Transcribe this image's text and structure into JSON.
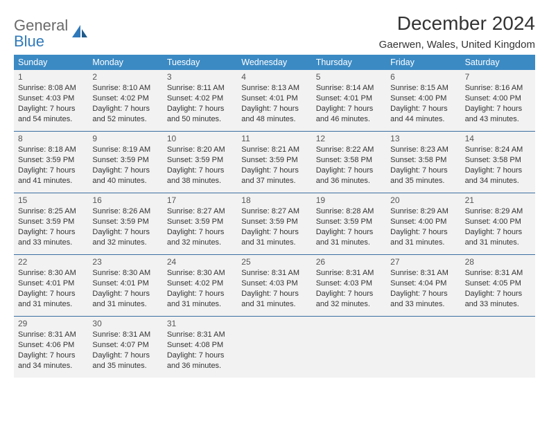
{
  "logo": {
    "text1": "General",
    "text2": "Blue"
  },
  "title": "December 2024",
  "location": "Gaerwen, Wales, United Kingdom",
  "colors": {
    "header_bg": "#3b8ac4",
    "week_border": "#3b6ea0",
    "cell_bg": "#f2f2f2",
    "logo_gray": "#6a6a6a",
    "logo_blue": "#2f79b9"
  },
  "weekdays": [
    "Sunday",
    "Monday",
    "Tuesday",
    "Wednesday",
    "Thursday",
    "Friday",
    "Saturday"
  ],
  "weeks": [
    [
      {
        "n": "1",
        "sr": "Sunrise: 8:08 AM",
        "ss": "Sunset: 4:03 PM",
        "dl1": "Daylight: 7 hours",
        "dl2": "and 54 minutes."
      },
      {
        "n": "2",
        "sr": "Sunrise: 8:10 AM",
        "ss": "Sunset: 4:02 PM",
        "dl1": "Daylight: 7 hours",
        "dl2": "and 52 minutes."
      },
      {
        "n": "3",
        "sr": "Sunrise: 8:11 AM",
        "ss": "Sunset: 4:02 PM",
        "dl1": "Daylight: 7 hours",
        "dl2": "and 50 minutes."
      },
      {
        "n": "4",
        "sr": "Sunrise: 8:13 AM",
        "ss": "Sunset: 4:01 PM",
        "dl1": "Daylight: 7 hours",
        "dl2": "and 48 minutes."
      },
      {
        "n": "5",
        "sr": "Sunrise: 8:14 AM",
        "ss": "Sunset: 4:01 PM",
        "dl1": "Daylight: 7 hours",
        "dl2": "and 46 minutes."
      },
      {
        "n": "6",
        "sr": "Sunrise: 8:15 AM",
        "ss": "Sunset: 4:00 PM",
        "dl1": "Daylight: 7 hours",
        "dl2": "and 44 minutes."
      },
      {
        "n": "7",
        "sr": "Sunrise: 8:16 AM",
        "ss": "Sunset: 4:00 PM",
        "dl1": "Daylight: 7 hours",
        "dl2": "and 43 minutes."
      }
    ],
    [
      {
        "n": "8",
        "sr": "Sunrise: 8:18 AM",
        "ss": "Sunset: 3:59 PM",
        "dl1": "Daylight: 7 hours",
        "dl2": "and 41 minutes."
      },
      {
        "n": "9",
        "sr": "Sunrise: 8:19 AM",
        "ss": "Sunset: 3:59 PM",
        "dl1": "Daylight: 7 hours",
        "dl2": "and 40 minutes."
      },
      {
        "n": "10",
        "sr": "Sunrise: 8:20 AM",
        "ss": "Sunset: 3:59 PM",
        "dl1": "Daylight: 7 hours",
        "dl2": "and 38 minutes."
      },
      {
        "n": "11",
        "sr": "Sunrise: 8:21 AM",
        "ss": "Sunset: 3:59 PM",
        "dl1": "Daylight: 7 hours",
        "dl2": "and 37 minutes."
      },
      {
        "n": "12",
        "sr": "Sunrise: 8:22 AM",
        "ss": "Sunset: 3:58 PM",
        "dl1": "Daylight: 7 hours",
        "dl2": "and 36 minutes."
      },
      {
        "n": "13",
        "sr": "Sunrise: 8:23 AM",
        "ss": "Sunset: 3:58 PM",
        "dl1": "Daylight: 7 hours",
        "dl2": "and 35 minutes."
      },
      {
        "n": "14",
        "sr": "Sunrise: 8:24 AM",
        "ss": "Sunset: 3:58 PM",
        "dl1": "Daylight: 7 hours",
        "dl2": "and 34 minutes."
      }
    ],
    [
      {
        "n": "15",
        "sr": "Sunrise: 8:25 AM",
        "ss": "Sunset: 3:59 PM",
        "dl1": "Daylight: 7 hours",
        "dl2": "and 33 minutes."
      },
      {
        "n": "16",
        "sr": "Sunrise: 8:26 AM",
        "ss": "Sunset: 3:59 PM",
        "dl1": "Daylight: 7 hours",
        "dl2": "and 32 minutes."
      },
      {
        "n": "17",
        "sr": "Sunrise: 8:27 AM",
        "ss": "Sunset: 3:59 PM",
        "dl1": "Daylight: 7 hours",
        "dl2": "and 32 minutes."
      },
      {
        "n": "18",
        "sr": "Sunrise: 8:27 AM",
        "ss": "Sunset: 3:59 PM",
        "dl1": "Daylight: 7 hours",
        "dl2": "and 31 minutes."
      },
      {
        "n": "19",
        "sr": "Sunrise: 8:28 AM",
        "ss": "Sunset: 3:59 PM",
        "dl1": "Daylight: 7 hours",
        "dl2": "and 31 minutes."
      },
      {
        "n": "20",
        "sr": "Sunrise: 8:29 AM",
        "ss": "Sunset: 4:00 PM",
        "dl1": "Daylight: 7 hours",
        "dl2": "and 31 minutes."
      },
      {
        "n": "21",
        "sr": "Sunrise: 8:29 AM",
        "ss": "Sunset: 4:00 PM",
        "dl1": "Daylight: 7 hours",
        "dl2": "and 31 minutes."
      }
    ],
    [
      {
        "n": "22",
        "sr": "Sunrise: 8:30 AM",
        "ss": "Sunset: 4:01 PM",
        "dl1": "Daylight: 7 hours",
        "dl2": "and 31 minutes."
      },
      {
        "n": "23",
        "sr": "Sunrise: 8:30 AM",
        "ss": "Sunset: 4:01 PM",
        "dl1": "Daylight: 7 hours",
        "dl2": "and 31 minutes."
      },
      {
        "n": "24",
        "sr": "Sunrise: 8:30 AM",
        "ss": "Sunset: 4:02 PM",
        "dl1": "Daylight: 7 hours",
        "dl2": "and 31 minutes."
      },
      {
        "n": "25",
        "sr": "Sunrise: 8:31 AM",
        "ss": "Sunset: 4:03 PM",
        "dl1": "Daylight: 7 hours",
        "dl2": "and 31 minutes."
      },
      {
        "n": "26",
        "sr": "Sunrise: 8:31 AM",
        "ss": "Sunset: 4:03 PM",
        "dl1": "Daylight: 7 hours",
        "dl2": "and 32 minutes."
      },
      {
        "n": "27",
        "sr": "Sunrise: 8:31 AM",
        "ss": "Sunset: 4:04 PM",
        "dl1": "Daylight: 7 hours",
        "dl2": "and 33 minutes."
      },
      {
        "n": "28",
        "sr": "Sunrise: 8:31 AM",
        "ss": "Sunset: 4:05 PM",
        "dl1": "Daylight: 7 hours",
        "dl2": "and 33 minutes."
      }
    ],
    [
      {
        "n": "29",
        "sr": "Sunrise: 8:31 AM",
        "ss": "Sunset: 4:06 PM",
        "dl1": "Daylight: 7 hours",
        "dl2": "and 34 minutes."
      },
      {
        "n": "30",
        "sr": "Sunrise: 8:31 AM",
        "ss": "Sunset: 4:07 PM",
        "dl1": "Daylight: 7 hours",
        "dl2": "and 35 minutes."
      },
      {
        "n": "31",
        "sr": "Sunrise: 8:31 AM",
        "ss": "Sunset: 4:08 PM",
        "dl1": "Daylight: 7 hours",
        "dl2": "and 36 minutes."
      },
      null,
      null,
      null,
      null
    ]
  ]
}
